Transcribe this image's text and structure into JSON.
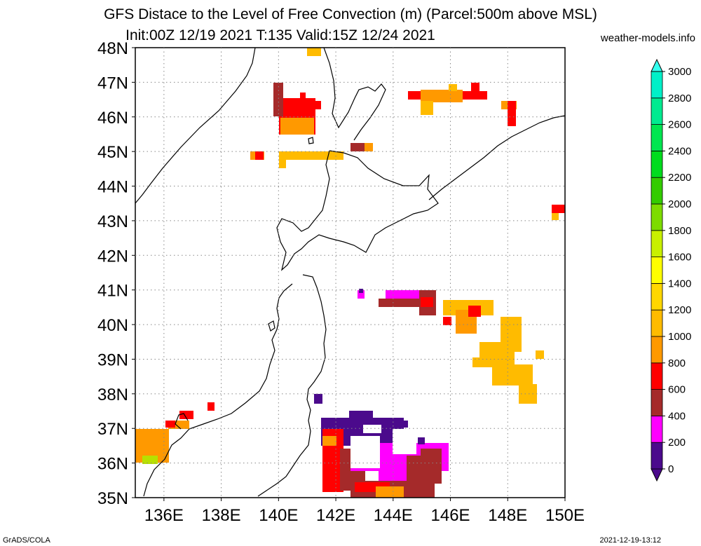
{
  "title_line1": "GFS Distace to the Level of Free Convection (m) (Parcel:500m above MSL)",
  "title_line2": "Init:00Z 12/19 2021 T:135 Valid:15Z 12/24 2021",
  "site": "weather-models.info",
  "footer_left": "GrADS/COLA",
  "footer_right": "2021-12-19-13:12",
  "map": {
    "lon_range": [
      135,
      150
    ],
    "lat_range": [
      35,
      48
    ],
    "lon_ticks": [
      "136E",
      "138E",
      "140E",
      "142E",
      "144E",
      "146E",
      "148E",
      "150E"
    ],
    "lon_tick_values": [
      136,
      138,
      140,
      142,
      144,
      146,
      148,
      150
    ],
    "lat_ticks": [
      "35N",
      "36N",
      "37N",
      "38N",
      "39N",
      "40N",
      "41N",
      "42N",
      "43N",
      "44N",
      "45N",
      "46N",
      "47N",
      "48N"
    ],
    "lat_tick_values": [
      35,
      36,
      37,
      38,
      39,
      40,
      41,
      42,
      43,
      44,
      45,
      46,
      47,
      48
    ],
    "grid": "dotted"
  },
  "colorbar": {
    "labels": [
      "0",
      "200",
      "400",
      "600",
      "800",
      "1000",
      "1200",
      "1400",
      "1600",
      "1800",
      "2000",
      "2200",
      "2400",
      "2600",
      "2800",
      "3000"
    ],
    "colors": [
      "#4b0a8c",
      "#ff00ff",
      "#a52a2a",
      "#ff0000",
      "#ff9900",
      "#ffbb00",
      "#ffd700",
      "#ffff00",
      "#c8f000",
      "#7ddc00",
      "#33cc00",
      "#00dc1e",
      "#00e650",
      "#00eb90",
      "#00f0c8",
      "#33ffee"
    ]
  }
}
